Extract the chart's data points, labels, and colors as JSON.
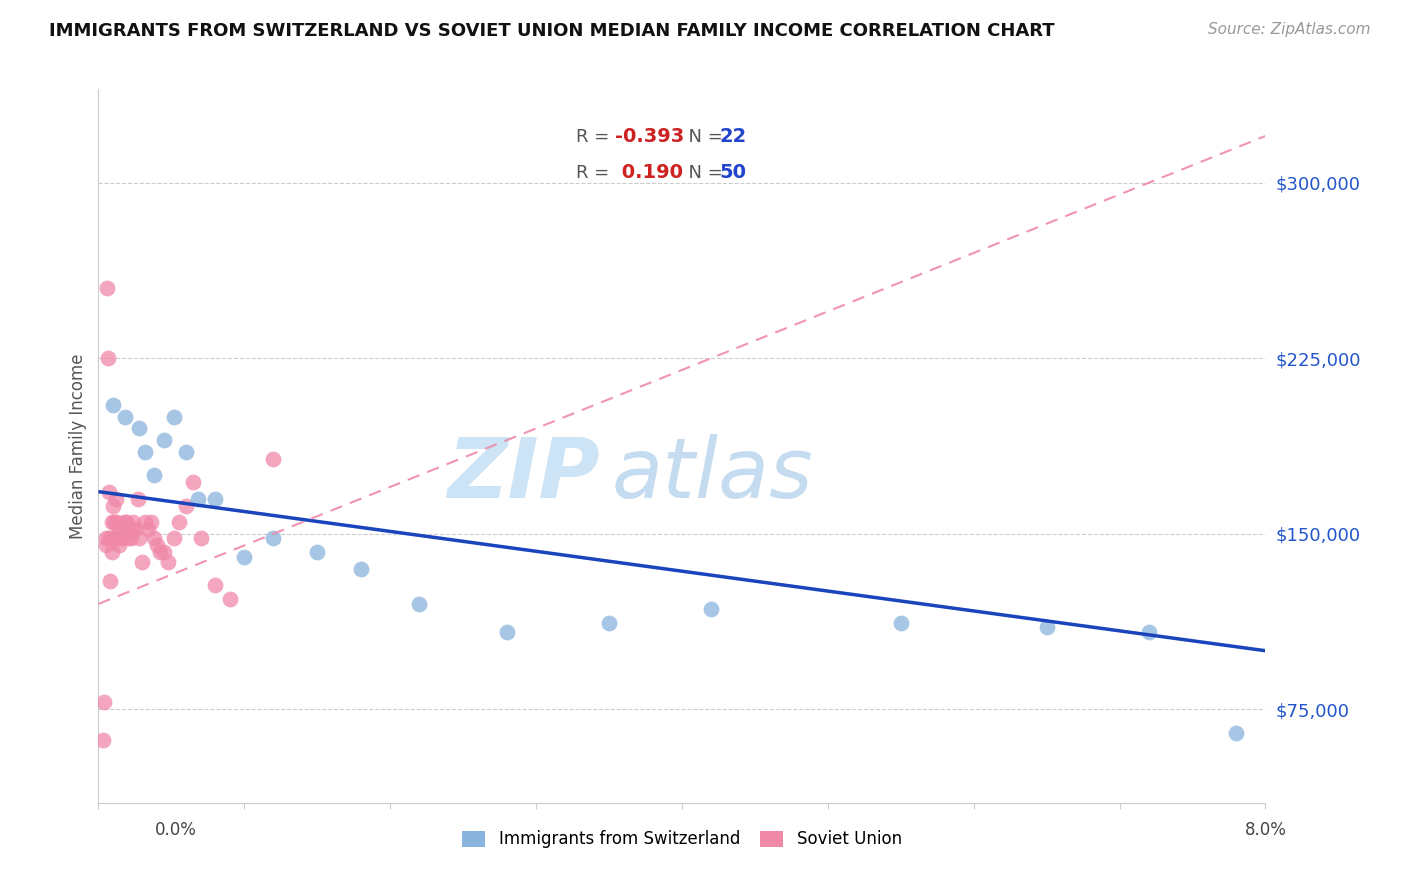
{
  "title": "IMMIGRANTS FROM SWITZERLAND VS SOVIET UNION MEDIAN FAMILY INCOME CORRELATION CHART",
  "source": "Source: ZipAtlas.com",
  "ylabel": "Median Family Income",
  "watermark_zip": "ZIP",
  "watermark_atlas": "atlas",
  "yaxis_labels": [
    "$75,000",
    "$150,000",
    "$225,000",
    "$300,000"
  ],
  "yaxis_values": [
    75000,
    150000,
    225000,
    300000
  ],
  "ylim": [
    35000,
    340000
  ],
  "xlim": [
    0.0,
    8.0
  ],
  "r_swiss": -0.393,
  "n_swiss": 22,
  "r_soviet": 0.19,
  "n_soviet": 50,
  "color_swiss": "#8ab4dd",
  "color_soviet": "#f088a8",
  "trendline_swiss_color": "#1a44bb",
  "trendline_soviet_color": "#f088a8",
  "swiss_x": [
    0.1,
    0.18,
    0.28,
    0.32,
    0.38,
    0.45,
    0.52,
    0.6,
    0.68,
    0.8,
    1.0,
    1.2,
    1.5,
    1.8,
    2.2,
    2.8,
    3.5,
    4.2,
    5.5,
    6.5,
    7.2,
    7.8
  ],
  "swiss_y": [
    205000,
    200000,
    195000,
    185000,
    175000,
    190000,
    200000,
    185000,
    165000,
    165000,
    140000,
    148000,
    142000,
    135000,
    120000,
    108000,
    112000,
    118000,
    112000,
    110000,
    108000,
    65000
  ],
  "soviet_x": [
    0.03,
    0.04,
    0.05,
    0.055,
    0.06,
    0.065,
    0.07,
    0.075,
    0.08,
    0.085,
    0.09,
    0.095,
    0.1,
    0.105,
    0.11,
    0.115,
    0.12,
    0.125,
    0.13,
    0.14,
    0.15,
    0.16,
    0.17,
    0.18,
    0.19,
    0.2,
    0.21,
    0.22,
    0.23,
    0.24,
    0.25,
    0.27,
    0.28,
    0.3,
    0.32,
    0.34,
    0.36,
    0.38,
    0.4,
    0.42,
    0.45,
    0.48,
    0.52,
    0.55,
    0.6,
    0.65,
    0.7,
    0.8,
    0.9,
    1.2
  ],
  "soviet_y": [
    62000,
    78000,
    148000,
    145000,
    255000,
    225000,
    168000,
    148000,
    130000,
    148000,
    142000,
    155000,
    162000,
    148000,
    155000,
    148000,
    165000,
    148000,
    155000,
    145000,
    152000,
    148000,
    152000,
    155000,
    155000,
    148000,
    152000,
    148000,
    152000,
    155000,
    152000,
    165000,
    148000,
    138000,
    155000,
    152000,
    155000,
    148000,
    145000,
    142000,
    142000,
    138000,
    148000,
    155000,
    162000,
    172000,
    148000,
    128000,
    122000,
    182000
  ],
  "soviet_trendline_x0": 0.0,
  "soviet_trendline_y0": 120000,
  "soviet_trendline_x1": 8.0,
  "soviet_trendline_y1": 320000,
  "swiss_trendline_x0": 0.0,
  "swiss_trendline_y0": 168000,
  "swiss_trendline_x1": 8.0,
  "swiss_trendline_y1": 100000
}
